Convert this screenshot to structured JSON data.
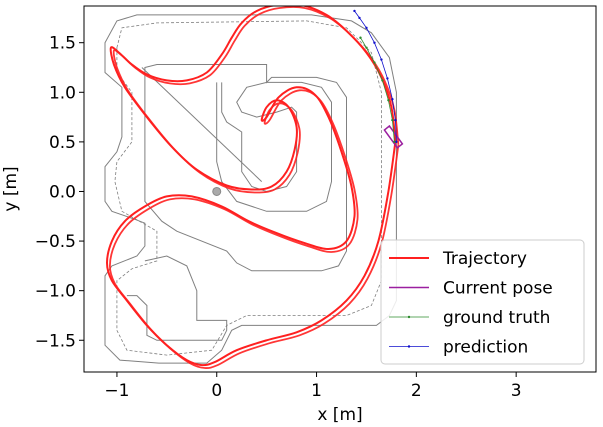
{
  "chart_data": {
    "type": "line",
    "xlabel": "x [m]",
    "ylabel": "y [m]",
    "xlim": [
      -1.33,
      3.8
    ],
    "ylim": [
      -1.82,
      1.87
    ],
    "xticks": [
      -1,
      0,
      1,
      2,
      3
    ],
    "yticks": [
      -1.5,
      -1.0,
      -0.5,
      0.0,
      0.5,
      1.0,
      1.5
    ],
    "xtick_labels": [
      "−1",
      "0",
      "1",
      "2",
      "3"
    ],
    "ytick_labels": [
      "−1.5",
      "−1.0",
      "−0.5",
      "0.0",
      "0.5",
      "1.0",
      "1.5"
    ],
    "grid": false,
    "legend": {
      "position": "lower-right",
      "entries": [
        {
          "label": "Trajectory",
          "color": "#ff2020",
          "style": "thick-line"
        },
        {
          "label": "Current pose",
          "color": "#9b1fa0",
          "style": "line"
        },
        {
          "label": "ground truth",
          "color": "#2e8b2e",
          "style": "thin-line-dots"
        },
        {
          "label": "prediction",
          "color": "#1010cc",
          "style": "thin-line-dots"
        }
      ]
    },
    "track": {
      "color": "#808080",
      "centerline_color": "#7f7f7f",
      "outer": [
        [
          -1.12,
          1.5
        ],
        [
          -1.12,
          1.2
        ],
        [
          -0.95,
          1.05
        ],
        [
          -0.95,
          0.55
        ],
        [
          -1.0,
          0.4
        ],
        [
          -1.12,
          0.25
        ],
        [
          -1.12,
          -0.1
        ],
        [
          -1.05,
          -0.2
        ],
        [
          -0.82,
          -0.28
        ],
        [
          -0.72,
          -0.32
        ],
        [
          -0.72,
          -0.55
        ],
        [
          -0.8,
          -0.65
        ],
        [
          -1.05,
          -0.75
        ],
        [
          -1.12,
          -0.85
        ],
        [
          -1.12,
          -1.55
        ],
        [
          -0.97,
          -1.7
        ],
        [
          -0.58,
          -1.73
        ],
        [
          -0.1,
          -1.73
        ],
        [
          0.05,
          -1.6
        ],
        [
          0.15,
          -1.4
        ],
        [
          0.25,
          -1.35
        ],
        [
          1.6,
          -1.35
        ],
        [
          1.73,
          -1.25
        ],
        [
          1.8,
          -1.1
        ],
        [
          1.8,
          1.0
        ],
        [
          1.73,
          1.35
        ],
        [
          1.55,
          1.6
        ],
        [
          1.35,
          1.72
        ],
        [
          0.95,
          1.78
        ],
        [
          -0.8,
          1.78
        ],
        [
          -1.0,
          1.72
        ],
        [
          -1.12,
          1.5
        ]
      ],
      "inner": [
        [
          -0.72,
          1.25
        ],
        [
          -0.6,
          1.28
        ],
        [
          0.3,
          1.28
        ],
        [
          0.5,
          1.28
        ],
        [
          0.5,
          1.1
        ],
        [
          0.55,
          1.15
        ],
        [
          1.0,
          1.15
        ],
        [
          1.2,
          1.1
        ],
        [
          1.3,
          0.95
        ],
        [
          1.3,
          -0.6
        ],
        [
          1.22,
          -0.75
        ],
        [
          1.05,
          -0.8
        ],
        [
          0.35,
          -0.8
        ],
        [
          0.2,
          -0.72
        ],
        [
          0.1,
          -0.6
        ],
        [
          -0.4,
          -0.4
        ],
        [
          -0.55,
          -0.3
        ],
        [
          -0.72,
          -0.1
        ],
        [
          -0.72,
          0.3
        ],
        [
          -0.72,
          0.9
        ],
        [
          -0.72,
          1.25
        ]
      ],
      "inner_island": [
        [
          0.0,
          1.1
        ],
        [
          0.0,
          0.3
        ],
        [
          0.05,
          0.1
        ],
        [
          0.2,
          -0.1
        ],
        [
          0.5,
          -0.2
        ],
        [
          0.9,
          -0.2
        ],
        [
          1.1,
          -0.1
        ],
        [
          1.15,
          0.1
        ],
        [
          1.15,
          0.9
        ],
        [
          1.05,
          1.05
        ],
        [
          0.85,
          1.1
        ],
        [
          0.5,
          1.1
        ],
        [
          0.3,
          1.05
        ],
        [
          0.2,
          0.9
        ],
        [
          0.25,
          0.8
        ],
        [
          0.4,
          0.75
        ],
        [
          0.6,
          0.8
        ],
        [
          0.75,
          0.85
        ],
        [
          0.8,
          0.8
        ],
        [
          0.8,
          0.2
        ],
        [
          0.7,
          0.05
        ],
        [
          0.5,
          0.0
        ],
        [
          0.35,
          0.05
        ],
        [
          0.25,
          0.2
        ],
        [
          0.25,
          0.6
        ],
        [
          0.1,
          0.7
        ],
        [
          0.05,
          0.8
        ],
        [
          0.05,
          1.1
        ]
      ],
      "chicane": [
        [
          -0.75,
          1.25
        ],
        [
          0.45,
          0.1
        ]
      ],
      "lower_pocket": [
        [
          -0.9,
          -1.05
        ],
        [
          -0.8,
          -1.05
        ],
        [
          -0.7,
          -1.15
        ],
        [
          -0.7,
          -1.45
        ],
        [
          -0.6,
          -1.5
        ],
        [
          0.05,
          -1.5
        ],
        [
          0.1,
          -1.4
        ],
        [
          0.1,
          -1.3
        ],
        [
          -0.2,
          -1.3
        ],
        [
          -0.2,
          -1.0
        ],
        [
          -0.3,
          -0.75
        ],
        [
          -0.5,
          -0.65
        ],
        [
          -0.72,
          -0.7
        ]
      ],
      "center": [
        [
          -1.0,
          1.45
        ],
        [
          -0.95,
          1.65
        ],
        [
          -0.6,
          1.7
        ],
        [
          0.9,
          1.72
        ],
        [
          1.3,
          1.65
        ],
        [
          1.55,
          1.4
        ],
        [
          1.65,
          1.0
        ],
        [
          1.65,
          -0.9
        ],
        [
          1.55,
          -1.15
        ],
        [
          1.3,
          -1.25
        ],
        [
          0.3,
          -1.25
        ],
        [
          0.1,
          -1.35
        ],
        [
          -0.05,
          -1.6
        ],
        [
          -0.5,
          -1.65
        ],
        [
          -0.9,
          -1.6
        ],
        [
          -1.0,
          -1.4
        ],
        [
          -1.0,
          -0.9
        ],
        [
          -0.85,
          -0.78
        ],
        [
          -0.6,
          -0.7
        ],
        [
          -0.6,
          -0.4
        ],
        [
          -0.95,
          -0.2
        ],
        [
          -1.02,
          0.1
        ],
        [
          -1.0,
          0.3
        ],
        [
          -0.85,
          0.5
        ],
        [
          -0.85,
          1.0
        ],
        [
          -1.0,
          1.2
        ],
        [
          -1.0,
          1.45
        ]
      ],
      "start_marker": [
        0.0,
        0.0
      ]
    },
    "series": [
      {
        "name": "Trajectory",
        "color": "#ff2020",
        "x": [
          1.79,
          1.75,
          1.65,
          1.5,
          1.3,
          1.1,
          0.85,
          0.6,
          0.4,
          0.25,
          0.15,
          0.05,
          -0.1,
          -0.3,
          -0.5,
          -0.7,
          -0.85,
          -0.98,
          -1.06,
          -1.03,
          -0.92,
          -0.7,
          -0.45,
          -0.2,
          0.1,
          0.35,
          0.55,
          0.7,
          0.78,
          0.8,
          0.72,
          0.6,
          0.5,
          0.45,
          0.5,
          0.62,
          0.8,
          0.98,
          1.12,
          1.25,
          1.35,
          1.38,
          1.3,
          1.12,
          0.88,
          0.6,
          0.32,
          0.05,
          -0.25,
          -0.5,
          -0.72,
          -0.92,
          -1.05,
          -1.1,
          -1.05,
          -0.9,
          -0.7,
          -0.5,
          -0.3,
          -0.15,
          -0.02,
          0.2,
          0.5,
          0.8,
          1.05,
          1.3,
          1.48,
          1.62,
          1.72,
          1.79
        ],
        "y": [
          0.5,
          0.85,
          1.15,
          1.4,
          1.62,
          1.78,
          1.88,
          1.88,
          1.82,
          1.7,
          1.55,
          1.38,
          1.2,
          1.12,
          1.12,
          1.18,
          1.28,
          1.4,
          1.45,
          1.28,
          1.05,
          0.75,
          0.45,
          0.22,
          0.06,
          0.02,
          0.05,
          0.2,
          0.42,
          0.65,
          0.85,
          0.92,
          0.85,
          0.72,
          0.75,
          0.95,
          1.05,
          0.98,
          0.75,
          0.4,
          0.05,
          -0.25,
          -0.5,
          -0.58,
          -0.52,
          -0.42,
          -0.3,
          -0.15,
          -0.05,
          -0.05,
          -0.15,
          -0.3,
          -0.5,
          -0.72,
          -0.9,
          -1.1,
          -1.35,
          -1.55,
          -1.7,
          -1.75,
          -1.72,
          -1.6,
          -1.5,
          -1.42,
          -1.3,
          -1.1,
          -0.85,
          -0.5,
          0.0,
          0.5
        ]
      },
      {
        "name": "Current pose",
        "color": "#9b1fa0",
        "x": [
          1.73,
          1.86,
          1.81,
          1.68,
          1.73
        ],
        "y": [
          0.66,
          0.48,
          0.44,
          0.62,
          0.66
        ]
      },
      {
        "name": "ground truth",
        "color": "#2e8b2e",
        "x": [
          1.78,
          1.76,
          1.72,
          1.66,
          1.58,
          1.5,
          1.44
        ],
        "y": [
          0.5,
          0.72,
          0.92,
          1.12,
          1.3,
          1.45,
          1.55
        ]
      },
      {
        "name": "prediction",
        "color": "#1010cc",
        "x": [
          1.8,
          1.79,
          1.76,
          1.71,
          1.65,
          1.58,
          1.5,
          1.43,
          1.38
        ],
        "y": [
          0.5,
          0.72,
          0.93,
          1.14,
          1.33,
          1.5,
          1.65,
          1.75,
          1.82
        ]
      }
    ]
  }
}
